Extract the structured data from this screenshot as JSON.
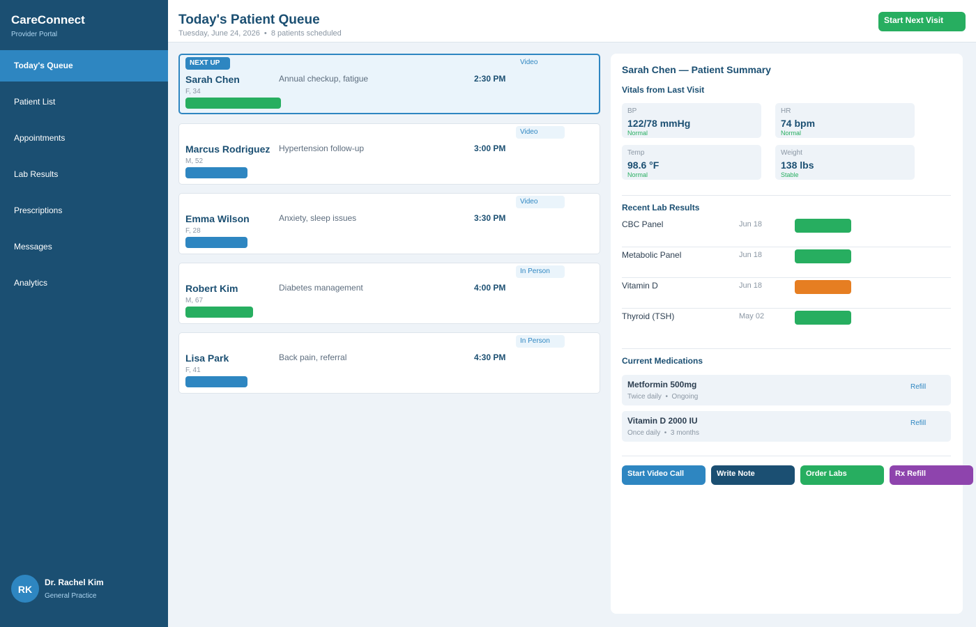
{
  "sidebar": {
    "brand": "CareConnect",
    "subtitle": "Provider Portal",
    "nav": [
      {
        "label": "Today's Queue",
        "active": true
      },
      {
        "label": "Patient List"
      },
      {
        "label": "Appointments"
      },
      {
        "label": "Lab Results"
      },
      {
        "label": "Prescriptions"
      },
      {
        "label": "Messages"
      },
      {
        "label": "Analytics"
      }
    ],
    "user": {
      "initials": "RK",
      "name": "Dr. Rachel Kim",
      "role": "General Practice"
    }
  },
  "header": {
    "title": "Today's Patient Queue",
    "subtitle": "Tuesday, June 24, 2026  •  8 patients scheduled",
    "button": "Start Next Visit"
  },
  "queue": {
    "next_up_label": "NEXT UP",
    "patients": [
      {
        "name": "Sarah Chen",
        "info": "F, 34",
        "reason": "Annual checkup, fatigue",
        "time": "2:30 PM",
        "visit_type": "Video",
        "status_color": "#27ae60",
        "next_up": true
      },
      {
        "name": "Marcus Rodriguez",
        "info": "M, 52",
        "reason": "Hypertension follow-up",
        "time": "3:00 PM",
        "visit_type": "Video",
        "status_color": "#2e86c1"
      },
      {
        "name": "Emma Wilson",
        "info": "F, 28",
        "reason": "Anxiety, sleep issues",
        "time": "3:30 PM",
        "visit_type": "Video",
        "status_color": "#2e86c1"
      },
      {
        "name": "Robert Kim",
        "info": "M, 67",
        "reason": "Diabetes management",
        "time": "4:00 PM",
        "visit_type": "In Person",
        "status_color": "#27ae60"
      },
      {
        "name": "Lisa Park",
        "info": "F, 41",
        "reason": "Back pain, referral",
        "time": "4:30 PM",
        "visit_type": "In Person",
        "status_color": "#2e86c1"
      }
    ]
  },
  "summary": {
    "title": "Sarah Chen — Patient Summary",
    "vitals_heading": "Vitals from Last Visit",
    "vitals": [
      {
        "label": "BP",
        "value": "122/78 mmHg",
        "status": "Normal"
      },
      {
        "label": "HR",
        "value": "74 bpm",
        "status": "Normal"
      },
      {
        "label": "Temp",
        "value": "98.6 °F",
        "status": "Normal"
      },
      {
        "label": "Weight",
        "value": "138 lbs",
        "status": "Stable"
      }
    ],
    "labs_heading": "Recent Lab Results",
    "labs": [
      {
        "name": "CBC Panel",
        "date": "Jun 18",
        "status_color": "#27ae60"
      },
      {
        "name": "Metabolic Panel",
        "date": "Jun 18",
        "status_color": "#27ae60"
      },
      {
        "name": "Vitamin D",
        "date": "Jun 18",
        "status_color": "#e67e22"
      },
      {
        "name": "Thyroid (TSH)",
        "date": "May 02",
        "status_color": "#27ae60"
      }
    ],
    "meds_heading": "Current Medications",
    "meds": [
      {
        "name": "Metformin 500mg",
        "schedule": "Twice daily  •  Ongoing",
        "action": "Refill"
      },
      {
        "name": "Vitamin D 2000 IU",
        "schedule": "Once daily  •  3 months",
        "action": "Refill"
      }
    ],
    "actions": [
      {
        "label": "Start Video Call",
        "color": "#2e86c1"
      },
      {
        "label": "Write Note",
        "color": "#1b4f72"
      },
      {
        "label": "Order Labs",
        "color": "#27ae60"
      },
      {
        "label": "Rx Refill",
        "color": "#8e44ad"
      }
    ]
  }
}
